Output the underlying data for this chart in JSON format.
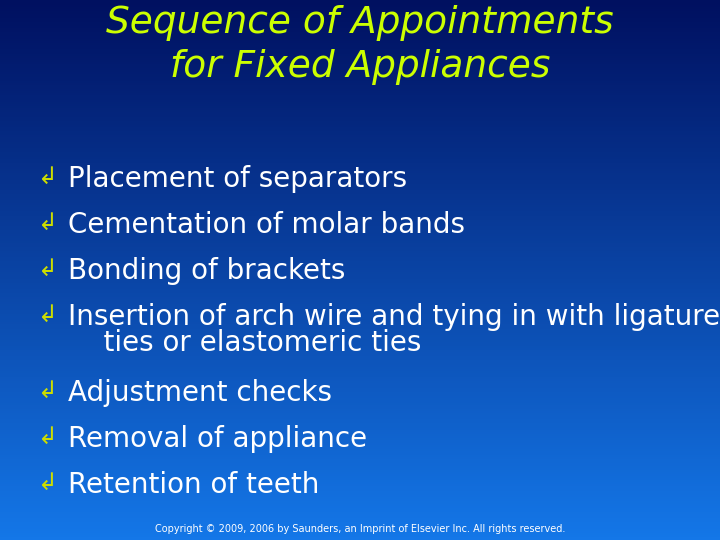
{
  "title_line1": "Sequence of Appointments",
  "title_line2": "for Fixed Appliances",
  "title_color": "#CCFF00",
  "text_color": "#FFFFFF",
  "bullet_symbol_color": "#CCDD00",
  "bullet_items": [
    "Placement of separators",
    "Cementation of molar bands",
    "Bonding of brackets",
    "Insertion of arch wire and tying in with ligature",
    "    ties or elastomeric ties",
    "Adjustment checks",
    "Removal of appliance",
    "Retention of teeth"
  ],
  "bullet_flags": [
    true,
    true,
    true,
    true,
    false,
    true,
    true,
    true
  ],
  "copyright": "Copyright © 2009, 2006 by Saunders, an Imprint of Elsevier Inc. All rights reserved.",
  "bg_color_top": "#1477E8",
  "bg_color_bottom": "#001060",
  "title_fontsize": 27,
  "body_fontsize": 20,
  "copyright_fontsize": 7
}
